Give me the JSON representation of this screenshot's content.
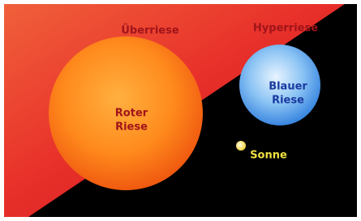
{
  "labels": {
    "supergiant": "Überriese",
    "hypergiant": "Hyperriese",
    "red_giant": [
      "Roter",
      "Riese"
    ],
    "blue_giant": [
      "Blauer",
      "Riese"
    ],
    "sun": "Sonne"
  }
}
